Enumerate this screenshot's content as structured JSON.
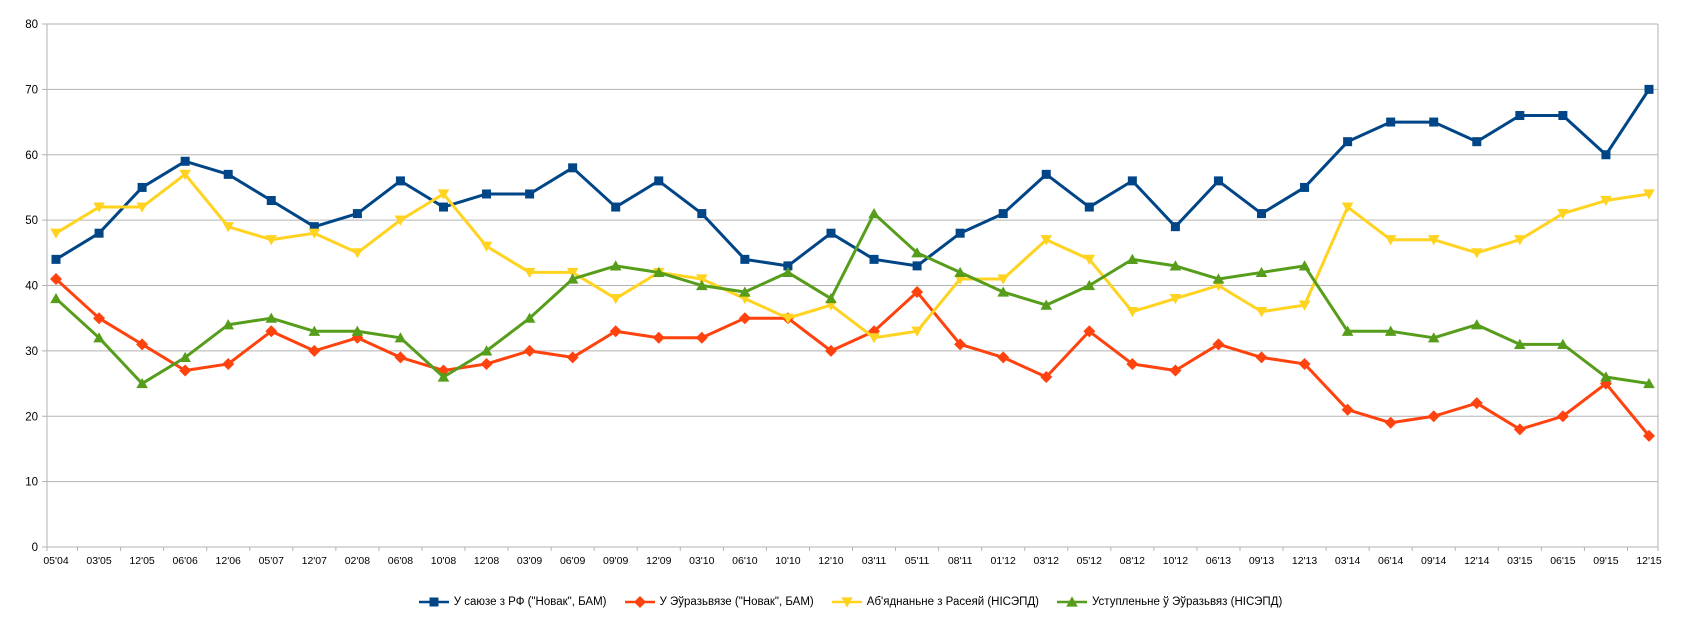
{
  "chart_data": {
    "type": "line",
    "title": "",
    "xlabel": "",
    "ylabel": "",
    "ylim": [
      0,
      80
    ],
    "ytick_step": 10,
    "grid": true,
    "legend_position": "bottom",
    "background": "#ffffff",
    "grid_color": "#b3b3b3",
    "axis_color": "#b3b3b3",
    "text_color": "#000000",
    "categories": [
      "05'04",
      "03'05",
      "12'05",
      "06'06",
      "12'06",
      "05'07",
      "12'07",
      "02'08",
      "06'08",
      "10'08",
      "12'08",
      "03'09",
      "06'09",
      "09'09",
      "12'09",
      "03'10",
      "06'10",
      "10'10",
      "12'10",
      "03'11",
      "05'11",
      "08'11",
      "01'12",
      "03'12",
      "05'12",
      "08'12",
      "10'12",
      "06'13",
      "09'13",
      "12'13",
      "03'14",
      "06'14",
      "09'14",
      "12'14",
      "03'15",
      "06'15",
      "09'15",
      "12'15"
    ],
    "series": [
      {
        "name": "У саюзе з РФ (\"Новак\", БАМ)",
        "color": "#004586",
        "marker": "square",
        "values": [
          44,
          48,
          55,
          59,
          57,
          53,
          49,
          51,
          56,
          52,
          54,
          54,
          58,
          52,
          56,
          51,
          44,
          43,
          48,
          44,
          43,
          48,
          51,
          57,
          52,
          56,
          49,
          56,
          51,
          55,
          62,
          65,
          65,
          62,
          66,
          66,
          60,
          70
        ]
      },
      {
        "name": "У Эўразьвязе (\"Новак\", БАМ)",
        "color": "#FF420E",
        "marker": "diamond",
        "values": [
          41,
          35,
          31,
          27,
          28,
          33,
          30,
          32,
          29,
          27,
          28,
          30,
          29,
          33,
          32,
          32,
          35,
          35,
          30,
          33,
          39,
          31,
          29,
          26,
          33,
          28,
          27,
          31,
          29,
          28,
          21,
          19,
          20,
          22,
          18,
          20,
          25,
          17
        ]
      },
      {
        "name": "Аб'яднаньне з Расеяй (НІСЭПД)",
        "color": "#FFD320",
        "marker": "triangle-down",
        "values": [
          48,
          52,
          52,
          57,
          49,
          47,
          48,
          45,
          50,
          54,
          46,
          42,
          42,
          38,
          42,
          41,
          38,
          35,
          37,
          32,
          33,
          41,
          41,
          47,
          44,
          36,
          38,
          40,
          36,
          37,
          52,
          47,
          47,
          45,
          47,
          51,
          53,
          54
        ]
      },
      {
        "name": "Уступленьне ў Эўразьвяз (НІСЭПД)",
        "color": "#579D1C",
        "marker": "triangle-up",
        "values": [
          38,
          32,
          25,
          29,
          34,
          35,
          33,
          33,
          32,
          26,
          30,
          35,
          41,
          43,
          42,
          40,
          39,
          42,
          38,
          51,
          45,
          42,
          39,
          37,
          40,
          44,
          43,
          41,
          42,
          43,
          33,
          33,
          32,
          34,
          31,
          31,
          26,
          25
        ]
      }
    ]
  }
}
